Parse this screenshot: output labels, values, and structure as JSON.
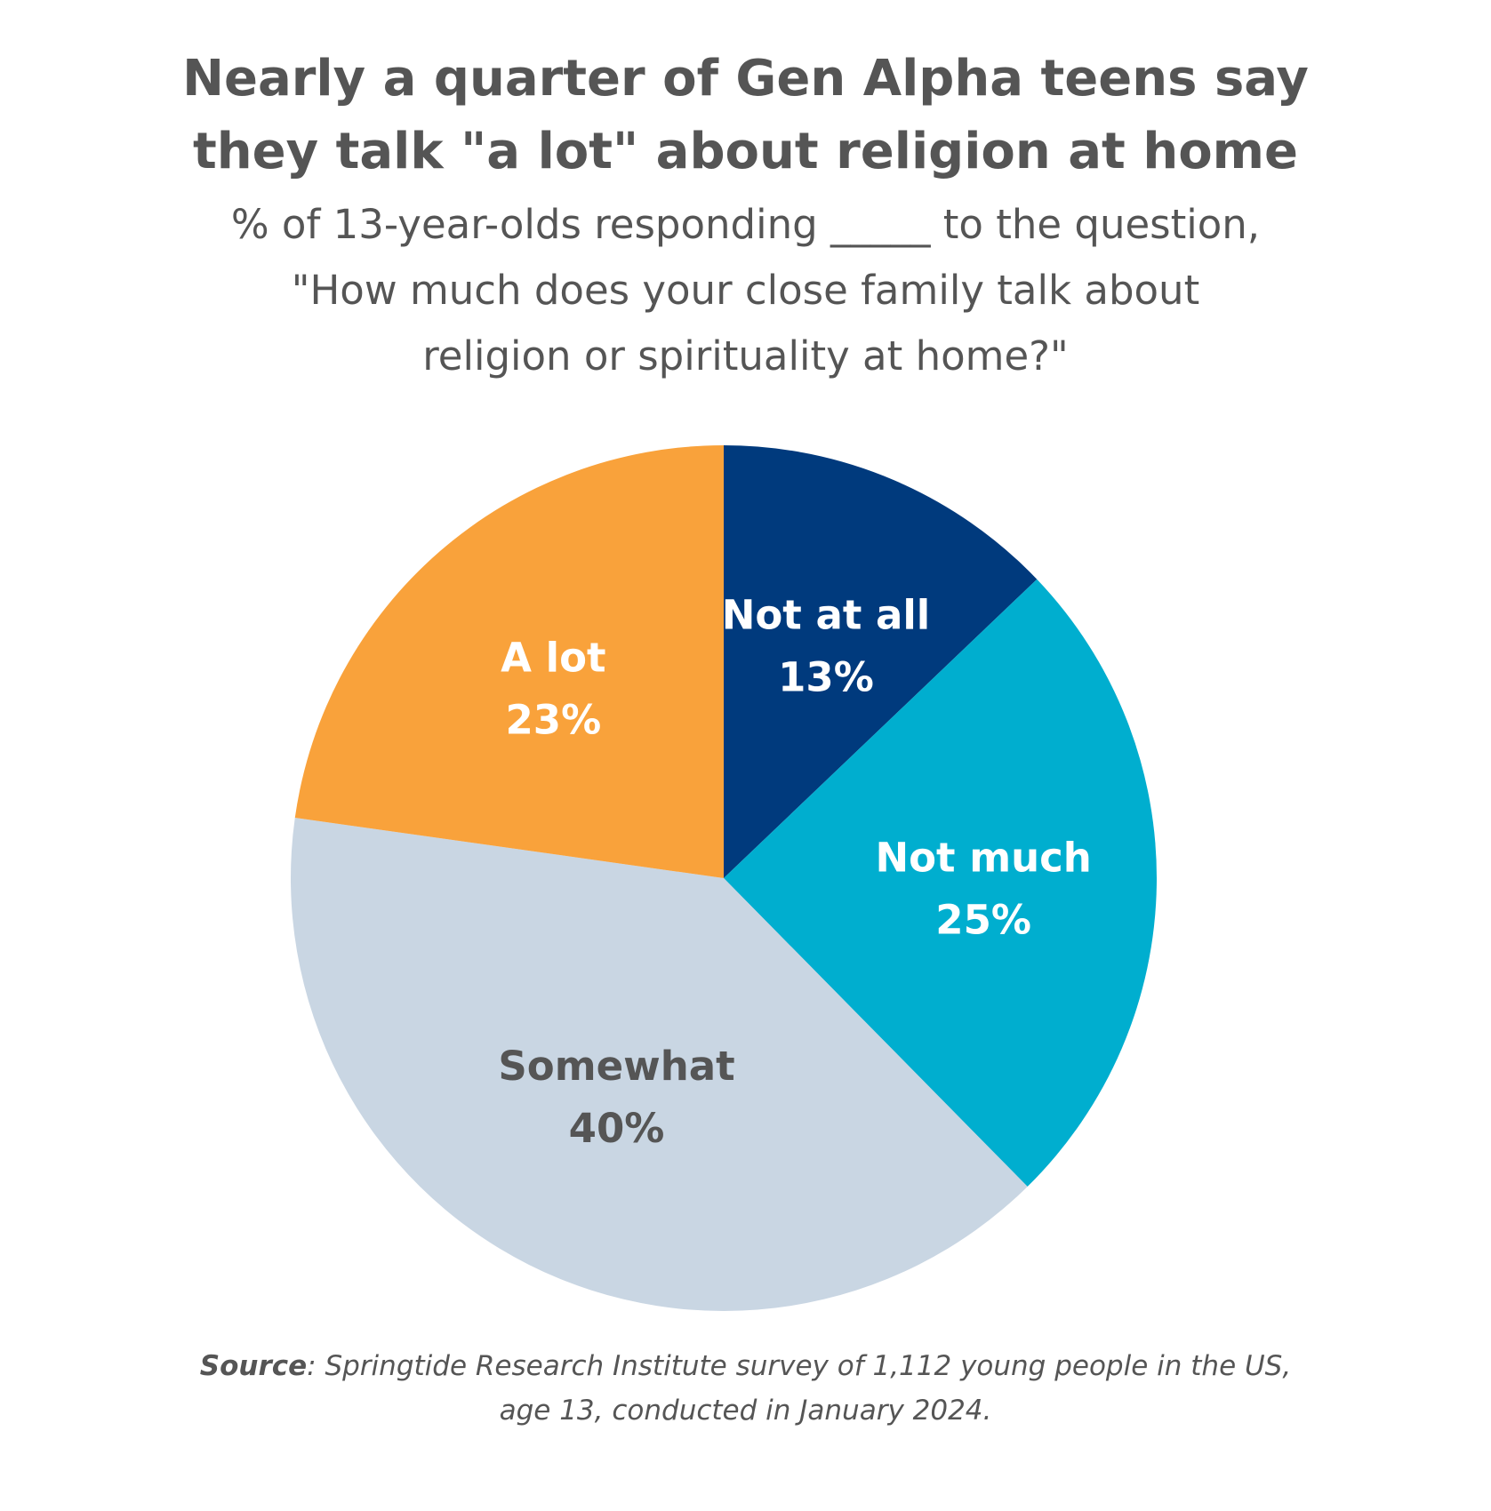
{
  "chart_data": {
    "type": "pie",
    "title": "Nearly a quarter of Gen Alpha teens say they talk \"a lot\" about religion at home",
    "title_lines": [
      "Nearly a quarter of Gen Alpha teens say",
      "they talk \"a lot\" about religion at home"
    ],
    "subtitle_lines": [
      "% of 13-year-olds responding _____ to the question,",
      "\"How much does your close family talk about",
      "religion or spirituality at home?\""
    ],
    "slices": [
      {
        "label": "Not at all",
        "value": 13,
        "value_label": "13%",
        "color": "#003a7d",
        "text_color": "#ffffff"
      },
      {
        "label": "Not much",
        "value": 25,
        "value_label": "25%",
        "color": "#00aecf",
        "text_color": "#ffffff"
      },
      {
        "label": "Somewhat",
        "value": 40,
        "value_label": "40%",
        "color": "#c9d6e3",
        "text_color": "#555555"
      },
      {
        "label": "A lot",
        "value": 23,
        "value_label": "23%",
        "color": "#f9a23b",
        "text_color": "#ffffff"
      }
    ],
    "start_angle": "12 o'clock",
    "direction": "clockwise",
    "legend": "none",
    "source_label": "Source",
    "source_lines": [
      ": Springtide Research Institute survey of 1,112 young people in the US,",
      "age 13, conducted in January 2024."
    ]
  }
}
